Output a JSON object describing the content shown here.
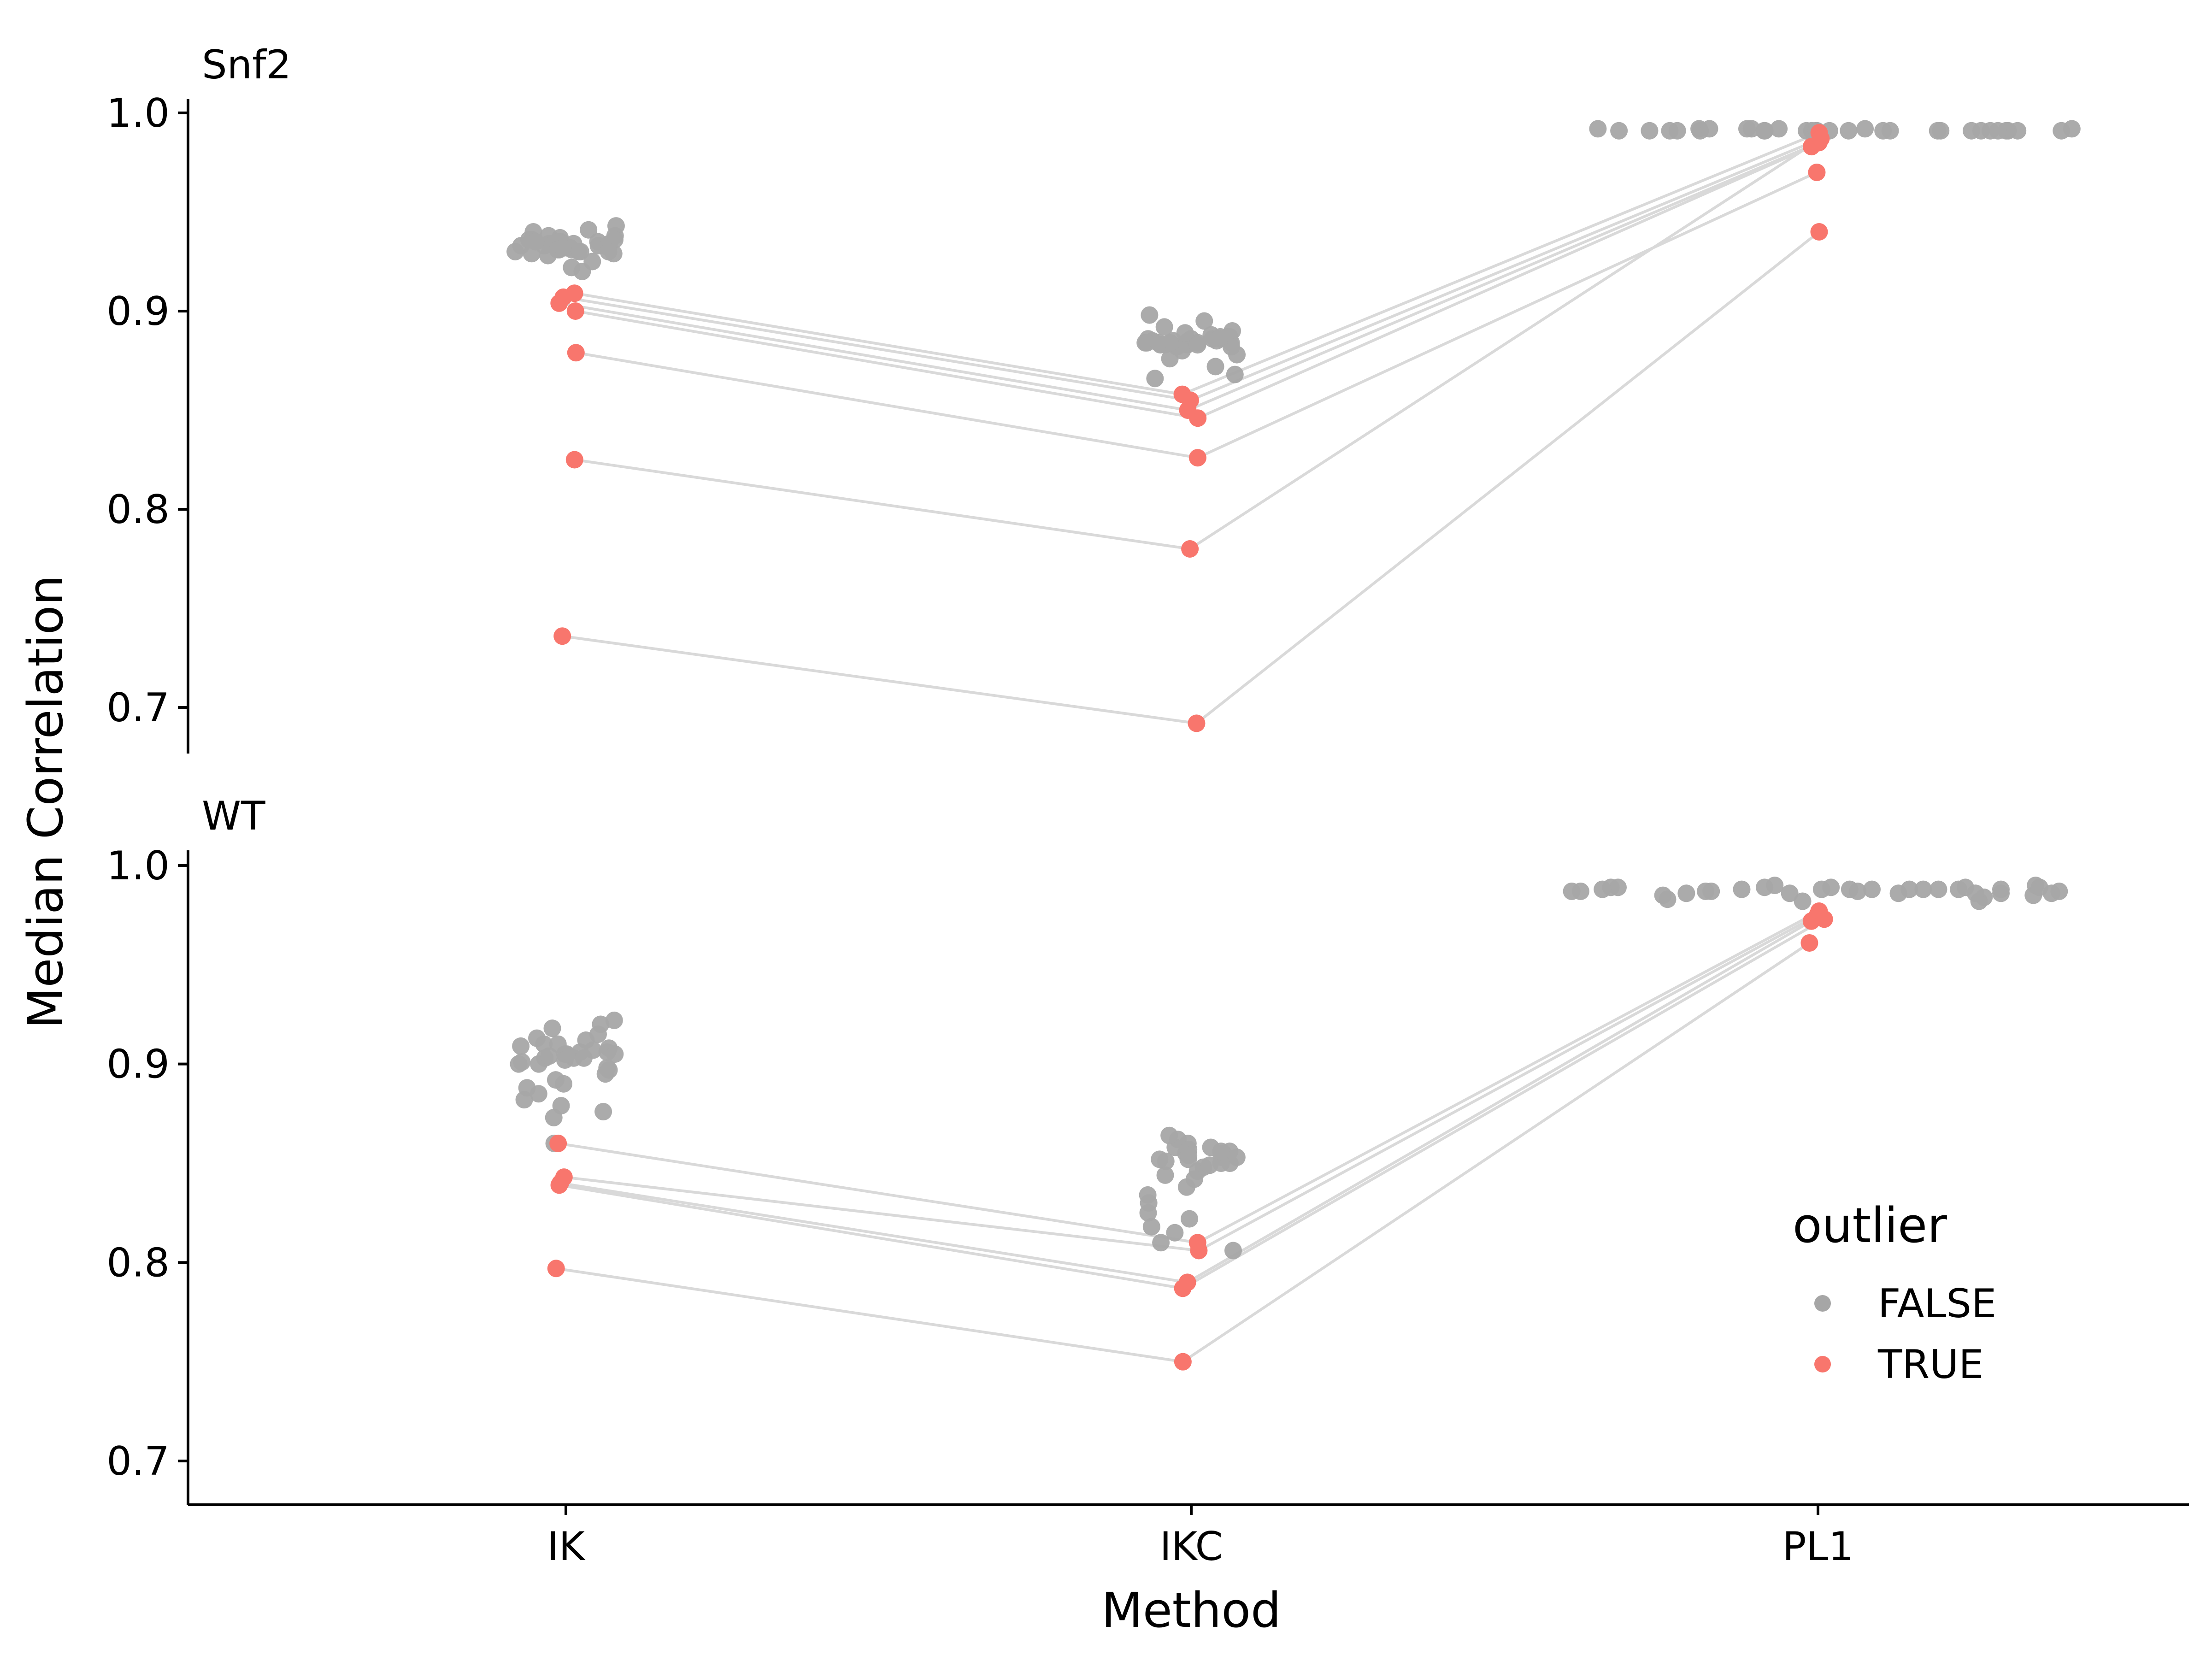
{
  "chart_data": {
    "type": "scatter",
    "xlabel": "Method",
    "ylabel": "Median Correlation",
    "categories": [
      "IK",
      "IKC",
      "PL1"
    ],
    "ylim": [
      0.675,
      1.01
    ],
    "yticks": [
      "0.7",
      "0.8",
      "0.9",
      "1.0"
    ],
    "grid": false,
    "legend": {
      "title": "outlier",
      "position": "bottom-right",
      "entries": [
        {
          "label": "FALSE",
          "color": "#a6a6a6"
        },
        {
          "label": "TRUE",
          "color": "#f8766d"
        }
      ]
    },
    "colors": {
      "false": "#a6a6a6",
      "true": "#f8766d",
      "line": "#d9d9d9"
    },
    "panels": [
      {
        "title": "Snf2",
        "false_points": {
          "IK": [
            0.932,
            0.933,
            0.931,
            0.934,
            0.935,
            0.93,
            0.936,
            0.938,
            0.932,
            0.929,
            0.933,
            0.94,
            0.943,
            0.935,
            0.937,
            0.934,
            0.931,
            0.93,
            0.928,
            0.925,
            0.922,
            0.92,
            0.933,
            0.936,
            0.934,
            0.932,
            0.93,
            0.929,
            0.935,
            0.938,
            0.941,
            0.933,
            0.931,
            0.935,
            0.934,
            0.936,
            0.93,
            0.932
          ],
          "IKC": [
            0.884,
            0.885,
            0.883,
            0.886,
            0.887,
            0.882,
            0.884,
            0.888,
            0.89,
            0.892,
            0.895,
            0.898,
            0.886,
            0.884,
            0.883,
            0.885,
            0.887,
            0.88,
            0.878,
            0.876,
            0.872,
            0.868,
            0.866,
            0.884,
            0.886,
            0.885,
            0.883,
            0.882,
            0.884,
            0.889,
            0.886,
            0.885,
            0.884,
            0.883,
            0.887,
            0.884
          ],
          "PL1": [
            0.991,
            0.991,
            0.992,
            0.991,
            0.991,
            0.992,
            0.991,
            0.991,
            0.992,
            0.991,
            0.991,
            0.991,
            0.991,
            0.992,
            0.991,
            0.992,
            0.991,
            0.991,
            0.992,
            0.991,
            0.991,
            0.992,
            0.991,
            0.991,
            0.991,
            0.992,
            0.991,
            0.991,
            0.991,
            0.991,
            0.991,
            0.991,
            0.991
          ]
        },
        "outlier_series": [
          [
            0.909,
            0.858,
            0.99
          ],
          [
            0.907,
            0.855,
            0.987
          ],
          [
            0.904,
            0.85,
            0.985
          ],
          [
            0.9,
            0.846,
            0.983
          ],
          [
            0.879,
            0.826,
            0.97
          ],
          [
            0.825,
            0.78,
            0.987
          ],
          [
            0.736,
            0.692,
            0.94
          ]
        ]
      },
      {
        "title": "WT",
        "false_points": {
          "IK": [
            0.903,
            0.905,
            0.9,
            0.91,
            0.913,
            0.915,
            0.92,
            0.922,
            0.918,
            0.908,
            0.906,
            0.902,
            0.898,
            0.895,
            0.892,
            0.89,
            0.888,
            0.885,
            0.882,
            0.879,
            0.876,
            0.873,
            0.905,
            0.907,
            0.903,
            0.91,
            0.912,
            0.9,
            0.897,
            0.904,
            0.906,
            0.909,
            0.901,
            0.903,
            0.905,
            0.86
          ],
          "IKC": [
            0.852,
            0.855,
            0.85,
            0.858,
            0.86,
            0.862,
            0.864,
            0.848,
            0.846,
            0.844,
            0.856,
            0.853,
            0.849,
            0.851,
            0.857,
            0.854,
            0.842,
            0.838,
            0.834,
            0.83,
            0.825,
            0.822,
            0.818,
            0.815,
            0.81,
            0.806,
            0.852,
            0.855,
            0.85,
            0.858,
            0.856,
            0.853
          ],
          "PL1": [
            0.988,
            0.989,
            0.987,
            0.988,
            0.99,
            0.989,
            0.988,
            0.987,
            0.986,
            0.988,
            0.989,
            0.987,
            0.986,
            0.985,
            0.988,
            0.989,
            0.987,
            0.986,
            0.982,
            0.984,
            0.988,
            0.99,
            0.986,
            0.983,
            0.986,
            0.987,
            0.988,
            0.988,
            0.989,
            0.988,
            0.987,
            0.982,
            0.986,
            0.985,
            0.988,
            0.989
          ]
        },
        "outlier_series": [
          [
            0.86,
            0.81,
            0.977
          ],
          [
            0.843,
            0.806,
            0.975
          ],
          [
            0.84,
            0.79,
            0.972
          ],
          [
            0.839,
            0.787,
            0.973
          ],
          [
            0.797,
            0.75,
            0.961
          ]
        ]
      }
    ]
  }
}
